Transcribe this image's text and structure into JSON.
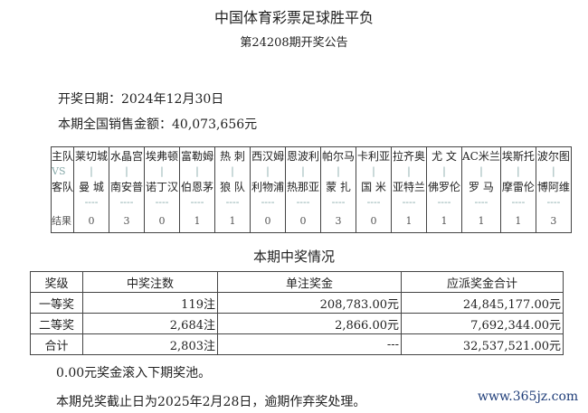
{
  "header": {
    "title": "中国体育彩票足球胜平负",
    "subtitle": "第24208期开奖公告"
  },
  "draw_date": "开奖日期：2024年12月30日",
  "sales": "本期全国销售金额：40,073,656元",
  "matches": {
    "labels": {
      "home": "主队",
      "vs": "VS",
      "away": "客队",
      "result": "结果"
    },
    "bar": "|",
    "dash": "----",
    "list": [
      {
        "home": "莱切城",
        "away": "曼 城",
        "result": "0"
      },
      {
        "home": "水晶宫",
        "away": "南安普",
        "result": "3"
      },
      {
        "home": "埃弗顿",
        "away": "诺丁汉",
        "result": "0"
      },
      {
        "home": "富勒姆",
        "away": "伯恩茅",
        "result": "1"
      },
      {
        "home": "热 刺",
        "away": "狼 队",
        "result": "1"
      },
      {
        "home": "西汉姆",
        "away": "利物浦",
        "result": "0"
      },
      {
        "home": "恩波利",
        "away": "热那亚",
        "result": "0"
      },
      {
        "home": "帕尔马",
        "away": "蒙 扎",
        "result": "3"
      },
      {
        "home": "卡利亚",
        "away": "国 米",
        "result": "0"
      },
      {
        "home": "拉齐奥",
        "away": "亚特兰",
        "result": "1"
      },
      {
        "home": "尤 文",
        "away": "佛罗伦",
        "result": "1"
      },
      {
        "home": "AC米兰",
        "away": "罗 马",
        "result": "1"
      },
      {
        "home": "埃斯托",
        "away": "摩雷伦",
        "result": "1"
      },
      {
        "home": "波尔图",
        "away": "博阿维",
        "result": "3"
      }
    ]
  },
  "prize_section": {
    "title": "本期中奖情况",
    "headers": [
      "奖级",
      "中奖注数",
      "单注奖金",
      "应派奖金合计"
    ],
    "rows": [
      [
        "一等奖",
        "119注",
        "208,783.00元",
        "24,845,177.00元"
      ],
      [
        "二等奖",
        "2,684注",
        "2,866.00元",
        "7,692,344.00元"
      ],
      [
        "合计",
        "2,803注",
        "---",
        "32,537,521.00元"
      ]
    ]
  },
  "rollover": "0.00元奖金滚入下期奖池。",
  "deadline": "本期兑奖截止日为2025年2月28日，逾期作弃奖处理。",
  "watermark": "www.365jz.com"
}
